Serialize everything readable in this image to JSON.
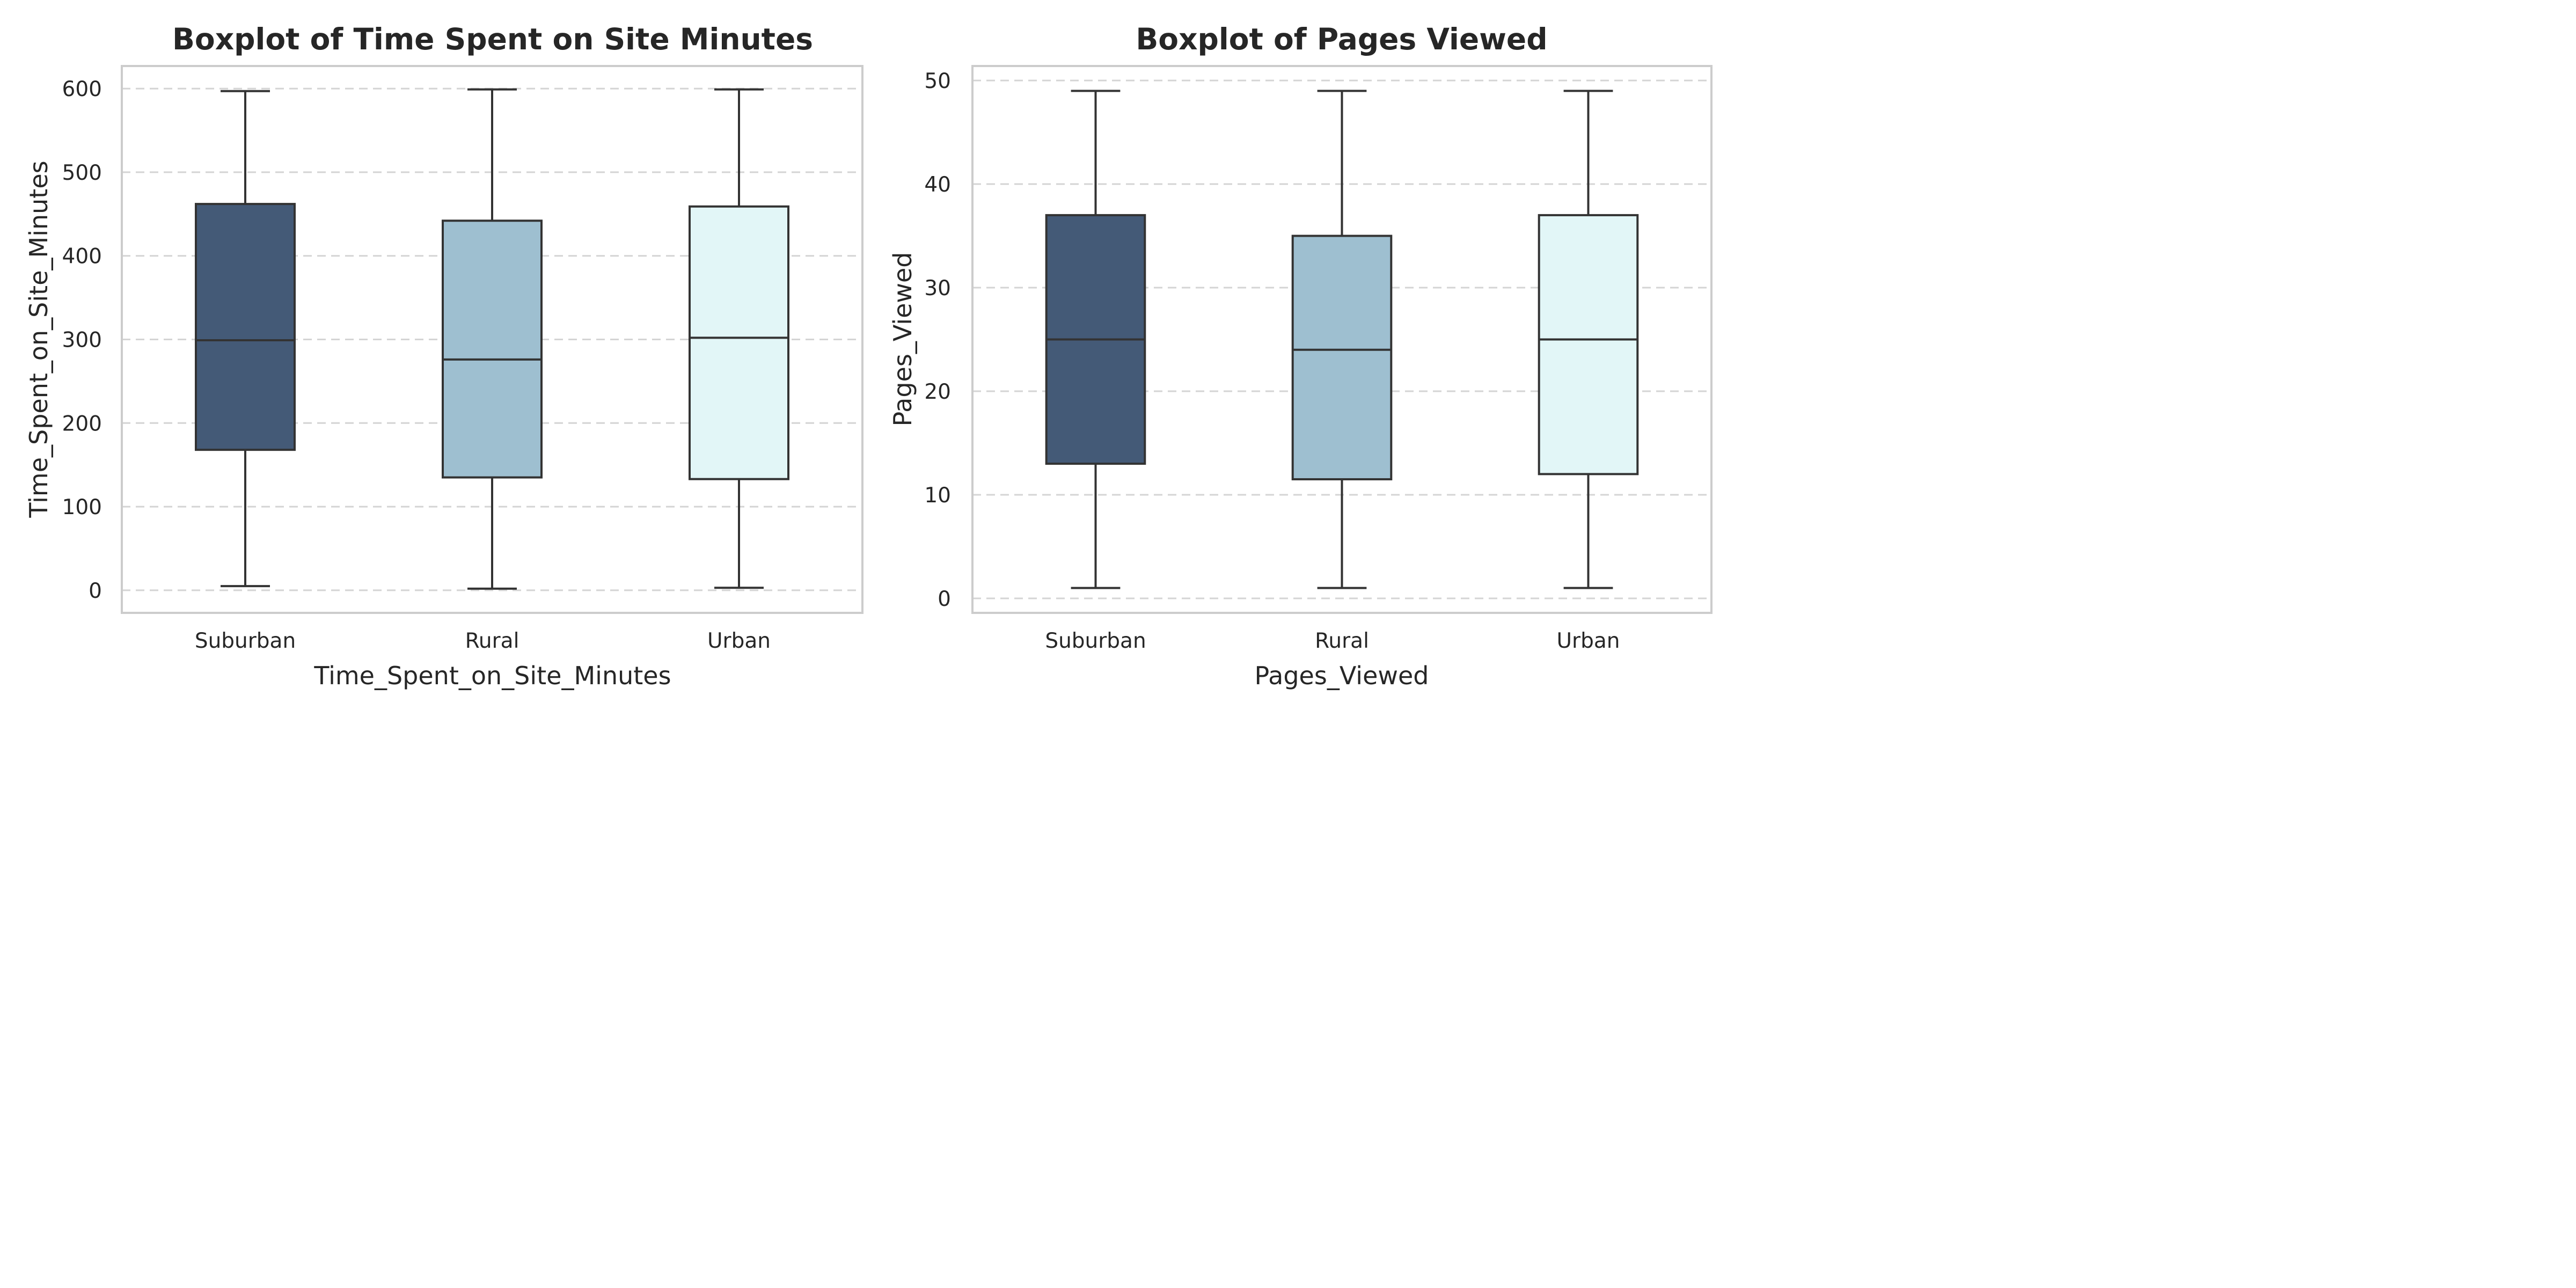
{
  "chart_data": [
    {
      "type": "boxplot",
      "title": "Boxplot of Time Spent on Site Minutes",
      "xlabel": "Time_Spent_on_Site_Minutes",
      "ylabel": "Time_Spent_on_Site_Minutes",
      "categories": [
        "Suburban",
        "Rural",
        "Urban"
      ],
      "colors": [
        "#445a77",
        "#9ebfd0",
        "#e2f6f7"
      ],
      "ylim": [
        -27,
        627
      ],
      "yticks": [
        0,
        100,
        200,
        300,
        400,
        500,
        600
      ],
      "grid": true,
      "boxes": [
        {
          "category": "Suburban",
          "min": 5,
          "q1": 168,
          "median": 299,
          "q3": 462,
          "max": 597
        },
        {
          "category": "Rural",
          "min": 2,
          "q1": 135,
          "median": 276,
          "q3": 442,
          "max": 599
        },
        {
          "category": "Urban",
          "min": 3,
          "q1": 133,
          "median": 302,
          "q3": 459,
          "max": 599
        }
      ]
    },
    {
      "type": "boxplot",
      "title": "Boxplot of Pages Viewed",
      "xlabel": "Pages_Viewed",
      "ylabel": "Pages_Viewed",
      "categories": [
        "Suburban",
        "Rural",
        "Urban"
      ],
      "colors": [
        "#445a77",
        "#9ebfd0",
        "#e2f6f7"
      ],
      "ylim": [
        -1.4,
        51.4
      ],
      "yticks": [
        0,
        10,
        20,
        30,
        40,
        50
      ],
      "grid": true,
      "boxes": [
        {
          "category": "Suburban",
          "min": 1,
          "q1": 13,
          "median": 25,
          "q3": 37,
          "max": 49
        },
        {
          "category": "Rural",
          "min": 1,
          "q1": 11.5,
          "median": 24,
          "q3": 35,
          "max": 49
        },
        {
          "category": "Urban",
          "min": 1,
          "q1": 12,
          "median": 25,
          "q3": 37,
          "max": 49
        }
      ]
    }
  ]
}
